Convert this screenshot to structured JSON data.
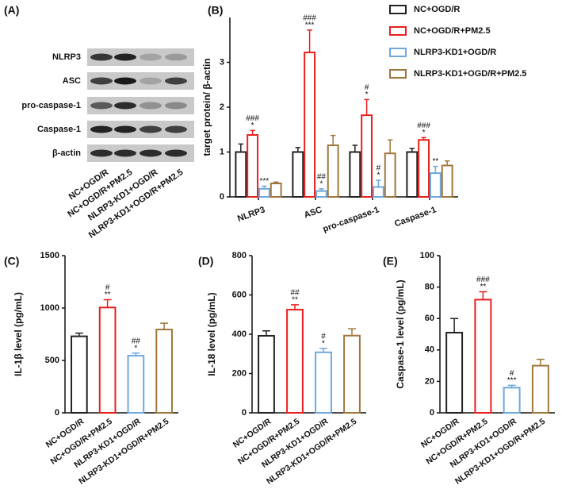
{
  "blot": {
    "panel_label": "(A)",
    "rows": [
      "NLRP3",
      "ASC",
      "pro-caspase-1",
      "Caspase-1",
      "β-actin"
    ],
    "columns": [
      "NC+OGD/R",
      "NC+OGD/R+PM2.5",
      "NLRP3-KD1+OGD/R",
      "NLRP3-KD1+OGD/R+PM2.5"
    ]
  },
  "chart_data": [
    {
      "type": "bar",
      "panel_label": "(B)",
      "y_label": "target protein/ β-actin",
      "categories": [
        "NLRP3",
        "ASC",
        "pro-caspase-1",
        "Caspase-1"
      ],
      "ylim": [
        0,
        4
      ],
      "yticks": [
        0,
        1,
        2,
        3
      ],
      "series": [
        {
          "name": "NC+OGD/R",
          "color": "#222222",
          "values": [
            1,
            1,
            1,
            1
          ],
          "errors": [
            0.18,
            0.1,
            0.15,
            0.08
          ],
          "significance": [
            null,
            null,
            null,
            null
          ]
        },
        {
          "name": "NC+OGD/R+PM2.5",
          "color": "#e8201e",
          "values": [
            1.38,
            3.22,
            1.82,
            1.27
          ],
          "errors": [
            0.1,
            0.5,
            0.35,
            0.05
          ],
          "significance": [
            [
              "###",
              "*"
            ],
            [
              "###",
              "***"
            ],
            [
              "#",
              "*"
            ],
            [
              "###",
              "*"
            ]
          ]
        },
        {
          "name": "NLRP3-KD1+OGD/R",
          "color": "#6fa8dc",
          "values": [
            0.18,
            0.13,
            0.22,
            0.53
          ],
          "errors": [
            0.06,
            0.05,
            0.15,
            0.15
          ],
          "significance": [
            [
              "***"
            ],
            [
              "##",
              "*"
            ],
            [
              "#",
              "*"
            ],
            [
              "**"
            ]
          ]
        },
        {
          "name": "NLRP3-KD1+OGD/R+PM2.5",
          "color": "#a0763c",
          "values": [
            0.3,
            1.15,
            0.97,
            0.7
          ],
          "errors": [
            0.03,
            0.22,
            0.3,
            0.1
          ],
          "significance": [
            null,
            null,
            null,
            null
          ]
        }
      ]
    },
    {
      "type": "bar",
      "panel_label": "(C)",
      "y_label": "IL-1β level (pg/mL)",
      "categories": [
        "NC+OGD/R",
        "NC+OGD/R+PM2.5",
        "NLRP3-KD1+OGD/R",
        "NLRP3-KD1+OGD/R+PM2.5"
      ],
      "colors": [
        "#222222",
        "#e8201e",
        "#6fa8dc",
        "#a0763c"
      ],
      "values": [
        730,
        1005,
        545,
        795
      ],
      "errors": [
        30,
        75,
        25,
        60
      ],
      "significance": [
        null,
        [
          "#",
          "**"
        ],
        [
          "##",
          "*"
        ],
        null
      ],
      "ylim": [
        0,
        1500
      ],
      "yticks": [
        0,
        500,
        1000,
        1500
      ]
    },
    {
      "type": "bar",
      "panel_label": "(D)",
      "y_label": "IL-18 level (pg/mL)",
      "categories": [
        "NC+OGD/R",
        "NC+OGD/R+PM2.5",
        "NLRP3-KD1+OGD/R",
        "NLRP3-KD1+OGD/R+PM2.5"
      ],
      "colors": [
        "#222222",
        "#e8201e",
        "#6fa8dc",
        "#a0763c"
      ],
      "values": [
        392,
        525,
        308,
        393
      ],
      "errors": [
        25,
        25,
        20,
        35
      ],
      "significance": [
        null,
        [
          "##",
          "**"
        ],
        [
          "#",
          "*"
        ],
        null
      ],
      "ylim": [
        0,
        800
      ],
      "yticks": [
        0,
        200,
        400,
        600,
        800
      ]
    },
    {
      "type": "bar",
      "panel_label": "(E)",
      "y_label": "Caspase-1 level (pg/mL)",
      "categories": [
        "NC+OGD/R",
        "NC+OGD/R+PM2.5",
        "NLRP3-KD1+OGD/R",
        "NLRP3-KD1+OGD/R+PM2.5"
      ],
      "colors": [
        "#222222",
        "#e8201e",
        "#6fa8dc",
        "#a0763c"
      ],
      "values": [
        51,
        72,
        16,
        30
      ],
      "errors": [
        9,
        5,
        1.5,
        4
      ],
      "significance": [
        null,
        [
          "###",
          "**"
        ],
        [
          "#",
          "***"
        ],
        null
      ],
      "ylim": [
        0,
        100
      ],
      "yticks": [
        0,
        20,
        40,
        60,
        80,
        100
      ]
    }
  ]
}
